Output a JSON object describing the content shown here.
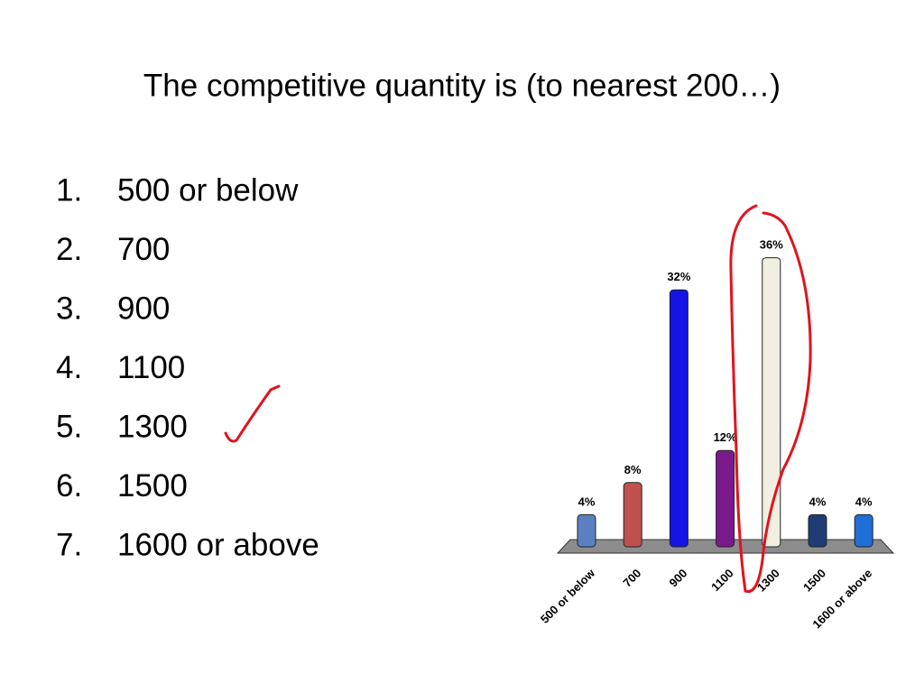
{
  "title": "The competitive quantity is (to nearest 200…)",
  "list": [
    {
      "number": "1.",
      "text": "500 or below"
    },
    {
      "number": "2.",
      "text": "700"
    },
    {
      "number": "3.",
      "text": "900"
    },
    {
      "number": "4.",
      "text": "1100"
    },
    {
      "number": "5.",
      "text": "1300"
    },
    {
      "number": "6.",
      "text": "1500"
    },
    {
      "number": "7.",
      "text": "1600 or above"
    }
  ],
  "chart_data": {
    "type": "bar",
    "categories": [
      "500 or below",
      "700",
      "900",
      "1100",
      "1300",
      "1500",
      "1600 or above"
    ],
    "values": [
      4,
      8,
      32,
      12,
      36,
      4,
      4
    ],
    "value_labels": [
      "4%",
      "8%",
      "32%",
      "12%",
      "36%",
      "4%",
      "4%"
    ],
    "colors": [
      "#5b80c2",
      "#c0504d",
      "#1414e6",
      "#7a1a8c",
      "#f1efe2",
      "#1f3d74",
      "#1f6fd6"
    ]
  }
}
